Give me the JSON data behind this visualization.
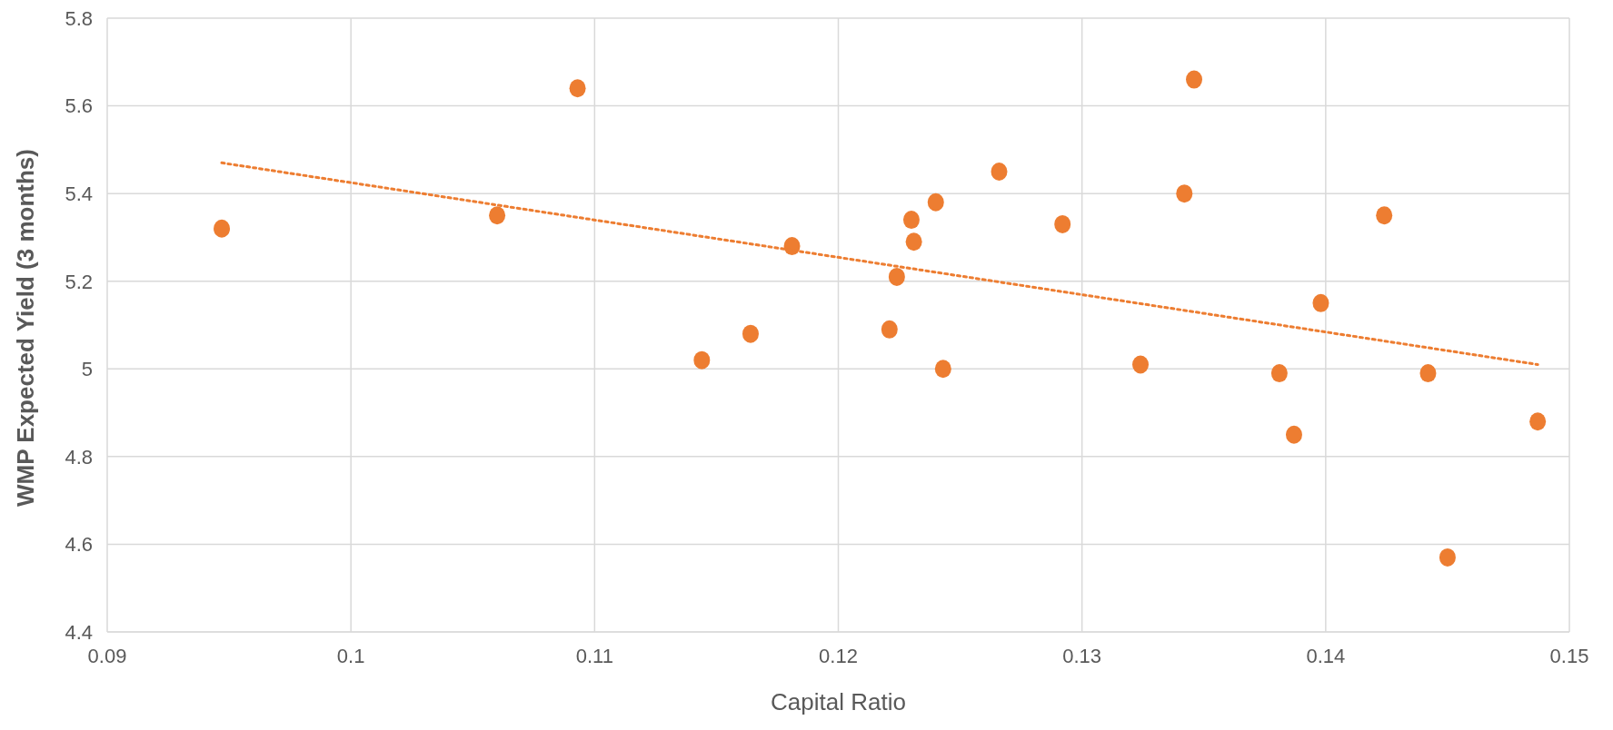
{
  "chart_data": {
    "type": "scatter",
    "xlabel": "Capital Ratio",
    "ylabel": "WMP Expected Yield (3 months)",
    "xlim": [
      0.09,
      0.15
    ],
    "xticks": [
      0.09,
      0.1,
      0.11,
      0.12,
      0.13,
      0.14,
      0.15
    ],
    "ylim": [
      4.4,
      5.8
    ],
    "yticks": [
      4.4,
      4.6,
      4.8,
      5,
      5.2,
      5.4,
      5.6,
      5.8
    ],
    "grid": true,
    "series": [
      {
        "color": "#ed7d31",
        "marker": "circle",
        "x": [
          0.0947,
          0.106,
          0.1093,
          0.1144,
          0.1164,
          0.1181,
          0.1221,
          0.1224,
          0.123,
          0.1231,
          0.124,
          0.1243,
          0.1266,
          0.1292,
          0.1324,
          0.1342,
          0.1346,
          0.1381,
          0.1387,
          0.1398,
          0.1424,
          0.1442,
          0.145,
          0.1487
        ],
        "values": [
          5.32,
          5.35,
          5.64,
          5.02,
          5.08,
          5.28,
          5.09,
          5.21,
          5.34,
          5.29,
          5.38,
          5.0,
          5.45,
          5.33,
          5.01,
          5.4,
          5.66,
          4.99,
          4.85,
          5.15,
          5.35,
          4.99,
          4.57,
          4.88
        ]
      },
      {
        "type": "line",
        "color": "#ed7d31",
        "line_style": "dotted",
        "marker": "none",
        "x": [
          0.0947,
          0.1487
        ],
        "values": [
          5.47,
          5.01
        ]
      }
    ]
  }
}
